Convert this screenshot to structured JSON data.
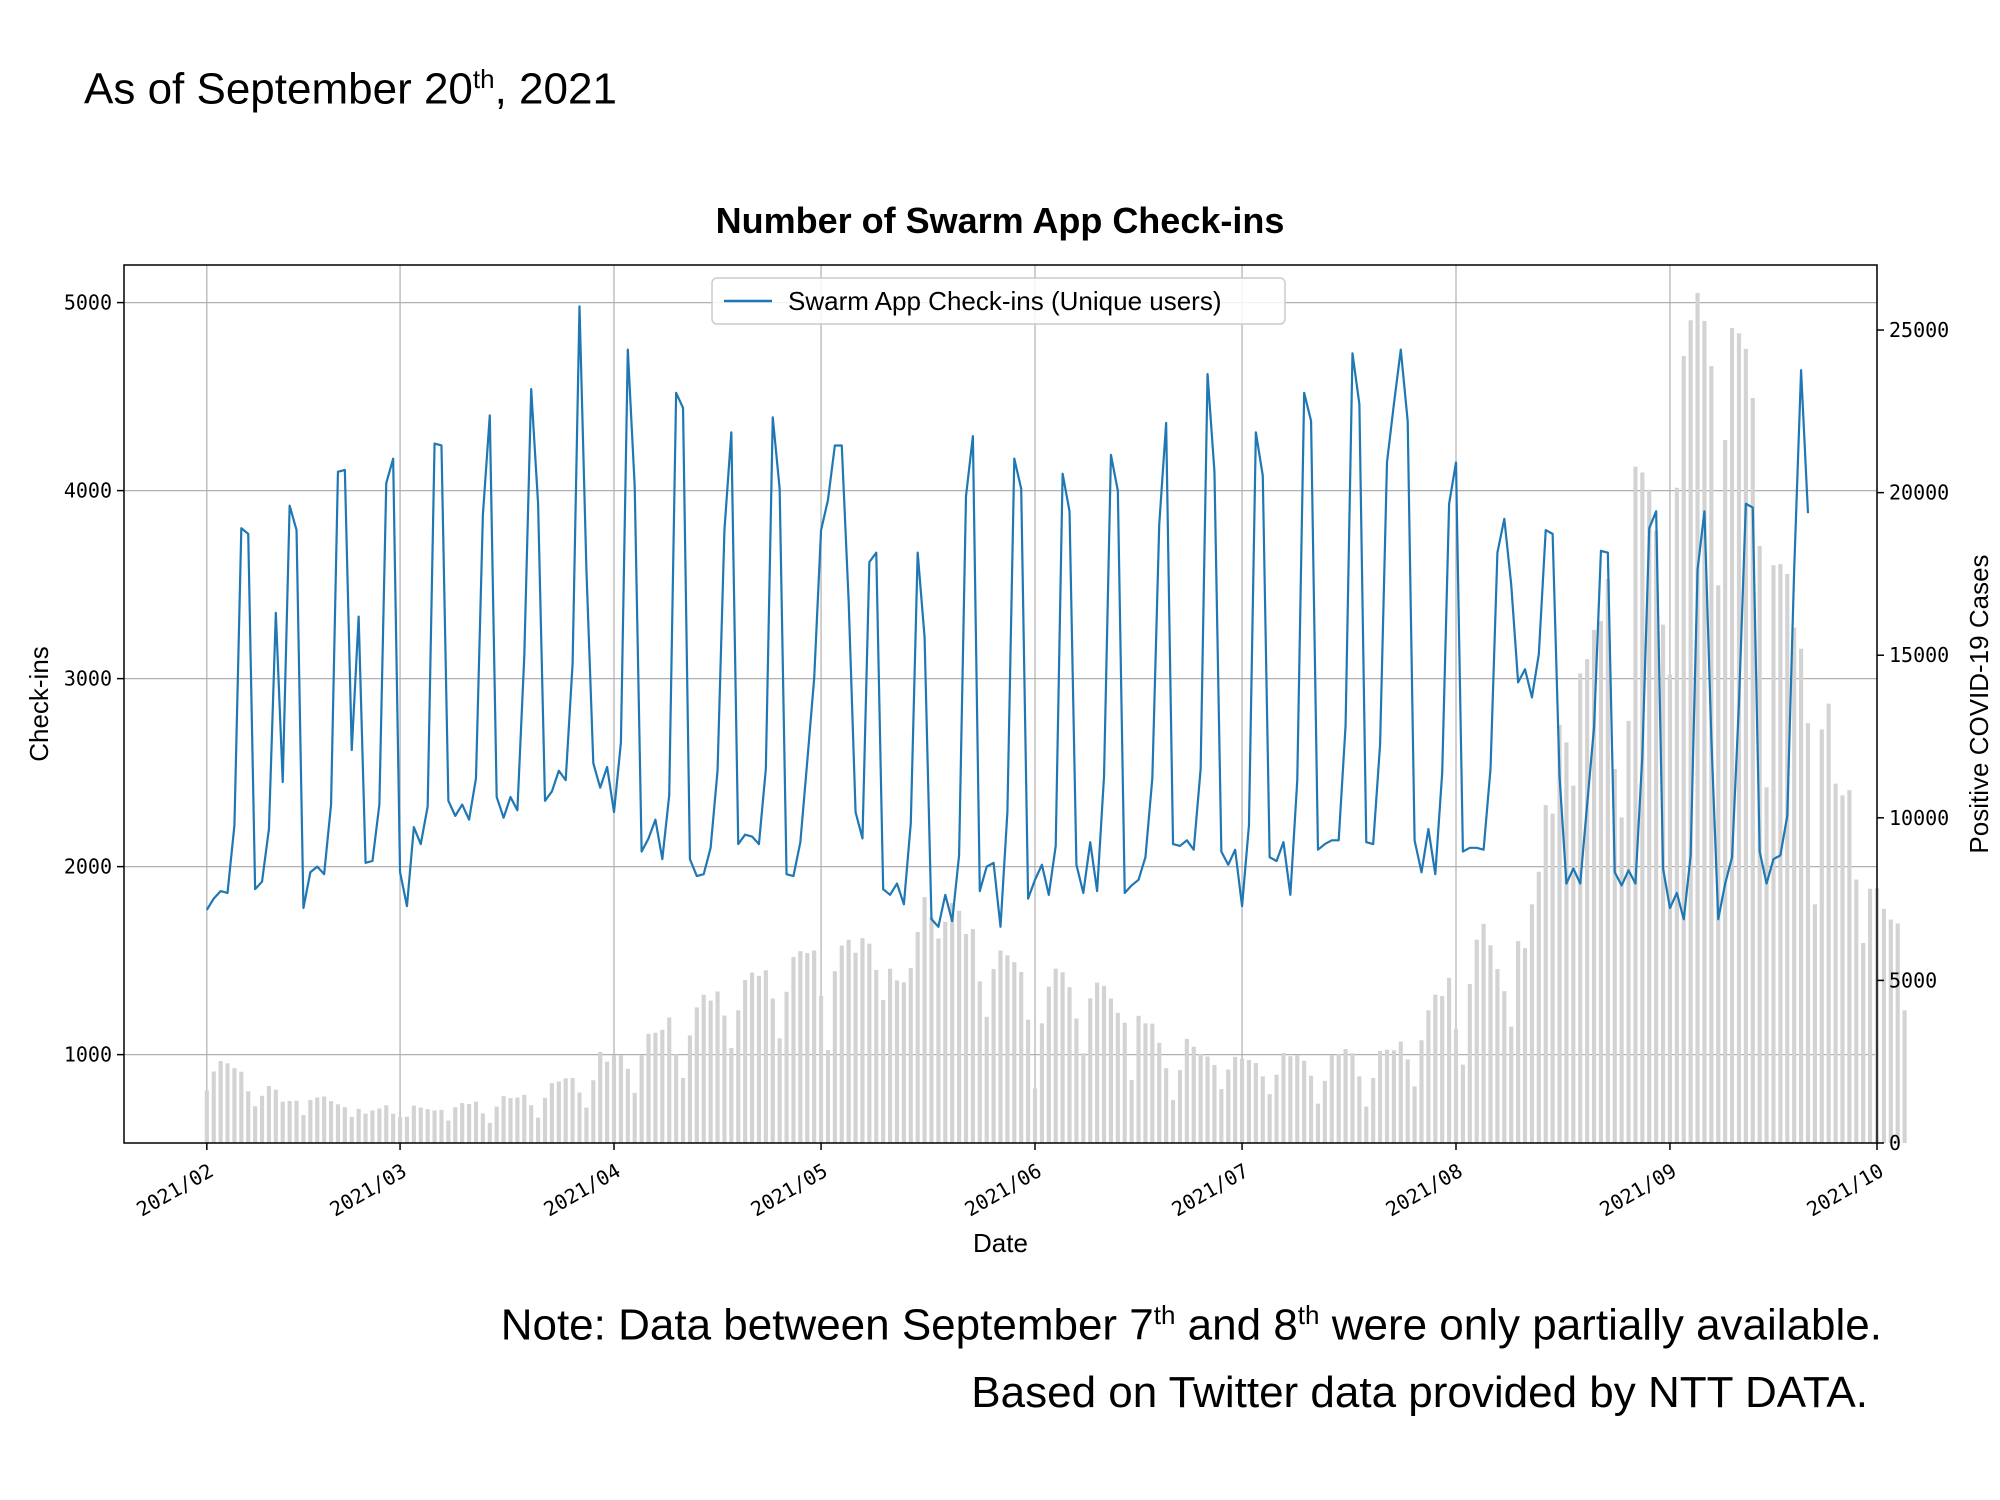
{
  "header": {
    "date_prefix": "As of September 20",
    "date_sup": "th",
    "date_suffix": ", 2021"
  },
  "footer": {
    "note_prefix": "Note: Data between September 7",
    "note_sup1": "th",
    "note_mid": " and 8",
    "note_sup2": "th",
    "note_suffix": " were only partially available.",
    "source": "Based on Twitter data provided by NTT DATA."
  },
  "chart_data": {
    "type": "line+bar",
    "title": "Number of Swarm App Check-ins",
    "xlabel": "Date",
    "ylabel": "Check-ins",
    "y2label": "Positive COVID-19 Cases",
    "legend": {
      "label": "Swarm App Check-ins (Unique users)",
      "position": "top-center"
    },
    "grid": true,
    "x_start": "2021-02-01",
    "x_range": [
      "2021-01-20",
      "2021-10-01"
    ],
    "xticks": [
      "2021/02",
      "2021/03",
      "2021/04",
      "2021/05",
      "2021/06",
      "2021/07",
      "2021/08",
      "2021/09",
      "2021/10"
    ],
    "y_range": [
      530,
      5200
    ],
    "yticks": [
      1000,
      2000,
      3000,
      4000,
      5000
    ],
    "y2_range": [
      0,
      27000
    ],
    "y2ticks": [
      0,
      5000,
      10000,
      15000,
      20000,
      25000
    ],
    "colors": {
      "line": "#1f77b4",
      "bars": "#d3d3d3",
      "grid": "#b0b0b0"
    },
    "checkins": [
      1770,
      1830,
      1870,
      1860,
      2220,
      3800,
      3770,
      1880,
      1920,
      2200,
      3350,
      2450,
      3920,
      3790,
      1780,
      1970,
      2000,
      1960,
      2330,
      4100,
      4110,
      2620,
      3330,
      2020,
      2030,
      2330,
      4040,
      4170,
      1970,
      1790,
      2210,
      2120,
      2320,
      4250,
      4240,
      2350,
      2270,
      2330,
      2250,
      2470,
      3870,
      4400,
      2370,
      2260,
      2370,
      2300,
      3120,
      4540,
      3930,
      2350,
      2400,
      2510,
      2460,
      3080,
      4980,
      3580,
      2550,
      2420,
      2530,
      2290,
      2660,
      4750,
      4020,
      2080,
      2150,
      2250,
      2040,
      2380,
      4520,
      4440,
      2040,
      1950,
      1960,
      2100,
      2510,
      3790,
      4310,
      2120,
      2170,
      2160,
      2120,
      2520,
      4390,
      4010,
      1960,
      1950,
      2130,
      2560,
      3000,
      3790,
      3950,
      4240,
      4240,
      3410,
      2290,
      2150,
      3620,
      3670,
      1880,
      1850,
      1910,
      1800,
      2230,
      3670,
      3220,
      1720,
      1680,
      1850,
      1710,
      2060,
      3970,
      4290,
      1870,
      2000,
      2020,
      1680,
      2290,
      4170,
      4010,
      1830,
      1930,
      2010,
      1850,
      2110,
      4090,
      3890,
      2010,
      1860,
      2130,
      1870,
      2480,
      4190,
      4000,
      1860,
      1900,
      1930,
      2050,
      2470,
      3820,
      4360,
      2120,
      2110,
      2140,
      2090,
      2520,
      4620,
      4100,
      2080,
      2010,
      2090,
      1790,
      2220,
      4310,
      4080,
      2050,
      2030,
      2130,
      1850,
      2460,
      4520,
      4370,
      2090,
      2120,
      2140,
      2140,
      2750,
      4730,
      4460,
      2130,
      2120,
      2650,
      4150,
      4460,
      4750,
      4370,
      2140,
      1970,
      2200,
      1960,
      2500,
      3930,
      4150,
      2080,
      2100,
      2100,
      2090,
      2520,
      3670,
      3850,
      3500,
      2980,
      3050,
      2900,
      3130,
      3790,
      3770,
      2480,
      1910,
      1990,
      1910,
      2330,
      2740,
      3680,
      3670,
      1970,
      1900,
      1980,
      1910,
      2590,
      3800,
      3890,
      1990,
      1780,
      1860,
      1720,
      2060,
      3580,
      3890,
      2680,
      1720,
      1910,
      2050,
      2870,
      3930,
      3910,
      2080,
      1910,
      2040,
      2060,
      2270,
      3580,
      4640,
      3880
    ],
    "cases": [
      1620,
      2200,
      2520,
      2450,
      2300,
      2190,
      1590,
      1130,
      1450,
      1750,
      1640,
      1270,
      1290,
      1300,
      860,
      1320,
      1400,
      1430,
      1290,
      1190,
      1100,
      800,
      1050,
      900,
      1000,
      1060,
      1160,
      900,
      800,
      810,
      1150,
      1090,
      1040,
      1000,
      1020,
      690,
      1100,
      1230,
      1200,
      1270,
      910,
      620,
      1120,
      1440,
      1380,
      1400,
      1480,
      1160,
      780,
      1390,
      1840,
      1890,
      1990,
      2000,
      1550,
      1090,
      1930,
      2800,
      2500,
      2690,
      2700,
      2280,
      1540,
      2690,
      3360,
      3390,
      3480,
      3860,
      2730,
      2000,
      3310,
      4170,
      4560,
      4380,
      4660,
      3920,
      2920,
      4080,
      5010,
      5240,
      5140,
      5310,
      4440,
      3220,
      4650,
      5720,
      5900,
      5840,
      5920,
      4520,
      2860,
      5280,
      6070,
      6250,
      5850,
      6300,
      6130,
      5320,
      4400,
      5360,
      5000,
      4940,
      5380,
      6490,
      7560,
      6950,
      6290,
      6800,
      7380,
      7140,
      6430,
      6580,
      4970,
      3880,
      5350,
      5920,
      5770,
      5560,
      5260,
      3790,
      1680,
      3680,
      4810,
      5360,
      5250,
      4790,
      3830,
      2760,
      4450,
      4930,
      4830,
      4440,
      4000,
      3700,
      1940,
      3910,
      3680,
      3670,
      3080,
      2300,
      1320,
      2240,
      3200,
      2960,
      2740,
      2660,
      2400,
      1660,
      2260,
      2650,
      2590,
      2550,
      2460,
      2050,
      1500,
      2100,
      2770,
      2670,
      2700,
      2530,
      2070,
      1210,
      1910,
      2710,
      2740,
      2890,
      2760,
      2050,
      1120,
      2000,
      2830,
      2870,
      2850,
      3120,
      2570,
      1740,
      3160,
      4080,
      4560,
      4520,
      5080,
      3510,
      2410,
      4890,
      6250,
      6740,
      6080,
      5350,
      4670,
      3580,
      6210,
      5990,
      7340,
      8340,
      10390,
      10130,
      12860,
      12320,
      10990,
      14440,
      14880,
      15780,
      16050,
      17350,
      11500,
      10010,
      12980,
      20800,
      20620,
      20090,
      18830,
      15940,
      14400,
      20150,
      24200,
      25300,
      26140,
      25280,
      23890,
      17150,
      21620,
      25060,
      24900,
      24420,
      22910,
      18360,
      10940,
      17770,
      17800,
      17500,
      15850,
      15200,
      12910,
      7340,
      12720,
      13510,
      11050,
      10690,
      10850,
      8100,
      6150,
      7820,
      7830,
      7200,
      6870,
      6750,
      4080
    ]
  }
}
